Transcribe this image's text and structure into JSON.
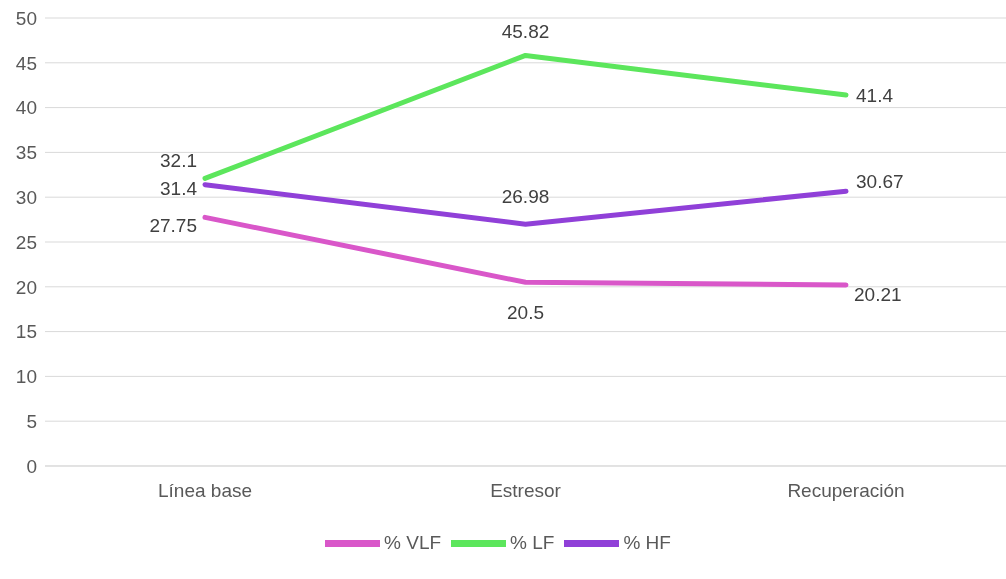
{
  "chart_data": {
    "type": "line",
    "categories": [
      "Línea base",
      "Estresor",
      "Recuperación"
    ],
    "series": [
      {
        "name": "% VLF",
        "color": "#d957c9",
        "values": [
          27.75,
          20.5,
          20.21
        ]
      },
      {
        "name": "% LF",
        "color": "#5ce65c",
        "values": [
          32.1,
          45.82,
          41.4
        ]
      },
      {
        "name": "% HF",
        "color": "#9040d8",
        "values": [
          31.4,
          26.98,
          30.67
        ]
      }
    ],
    "ylim": [
      0,
      50
    ],
    "yticks": [
      0,
      5,
      10,
      15,
      20,
      25,
      30,
      35,
      40,
      45,
      50
    ],
    "grid": "y",
    "legend": "bottom",
    "marker": "none",
    "line_style": "solid",
    "data_labels": true
  }
}
